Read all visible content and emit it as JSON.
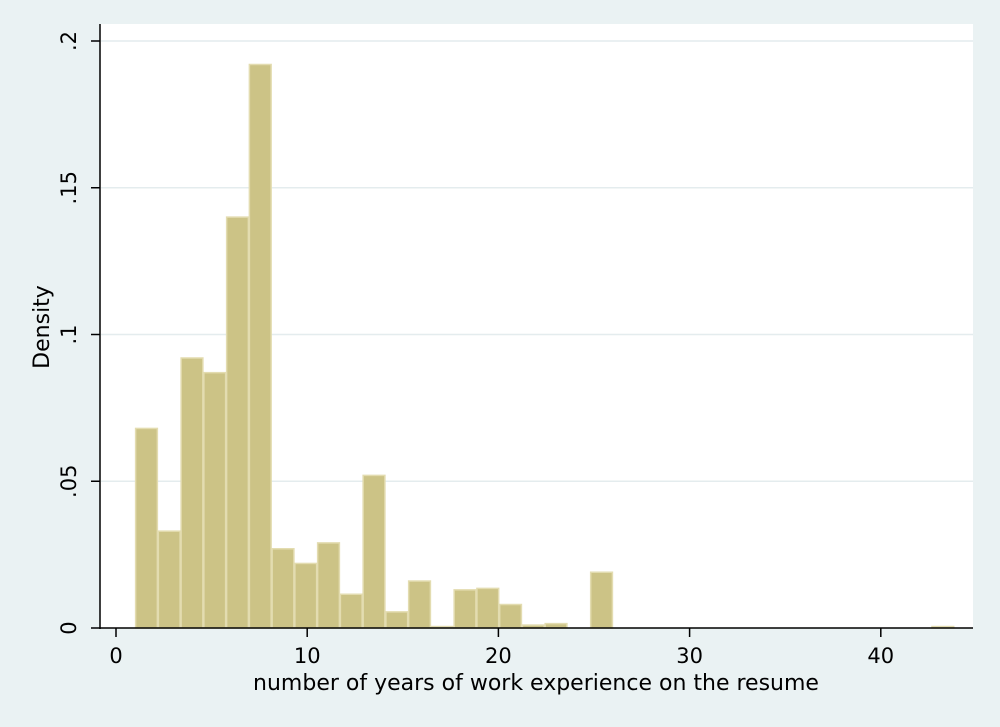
{
  "chart_data": {
    "type": "bar",
    "title": "",
    "xlabel": "number of years of work experience on the resume",
    "ylabel": "Density",
    "xlim": [
      0,
      44.5
    ],
    "ylim": [
      0,
      0.2
    ],
    "x_ticks": [
      {
        "value": 0,
        "label": "0"
      },
      {
        "value": 10,
        "label": "10"
      },
      {
        "value": 20,
        "label": "20"
      },
      {
        "value": 30,
        "label": "30"
      },
      {
        "value": 40,
        "label": "40"
      }
    ],
    "y_ticks": [
      {
        "value": 0,
        "label": "0"
      },
      {
        "value": 0.05,
        "label": ".05"
      },
      {
        "value": 0.1,
        "label": ".1"
      },
      {
        "value": 0.15,
        "label": ".15"
      },
      {
        "value": 0.2,
        "label": ".2"
      }
    ],
    "grid": "horizontal",
    "legend": "none",
    "bin_start": 1,
    "bin_width": 1.19,
    "values": [
      0.068,
      0.033,
      0.092,
      0.087,
      0.14,
      0.192,
      0.027,
      0.022,
      0.029,
      0.0115,
      0.052,
      0.0055,
      0.016,
      0.0005,
      0.013,
      0.0135,
      0.008,
      0.001,
      0.0015,
      0,
      0.019,
      0,
      0,
      0,
      0,
      0,
      0,
      0,
      0,
      0,
      0,
      0,
      0,
      0,
      0,
      0.0005
    ],
    "colors": {
      "bar_fill": "#ccc386",
      "bar_edge": "#e3dcb0",
      "plot_bg": "#ffffff",
      "outer_bg": "#eaf2f3",
      "grid": "#e4ecee",
      "axis": "#000000"
    }
  }
}
